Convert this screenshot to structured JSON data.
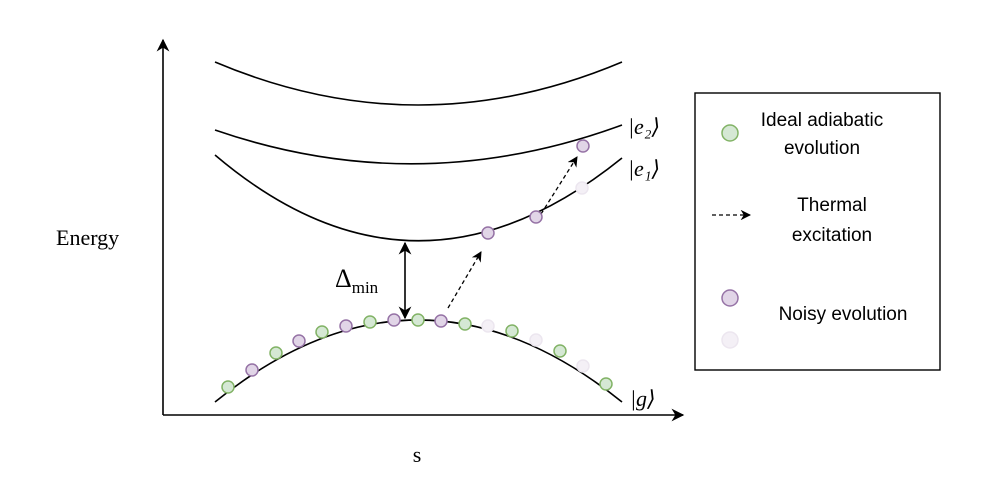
{
  "axes": {
    "y_label": "Energy",
    "x_label": "s"
  },
  "states": {
    "e2": "|e₂⟩",
    "e1": "|e₁⟩",
    "g": "|g⟩"
  },
  "gap": {
    "symbol": "Δ",
    "subscript": "min"
  },
  "legend": {
    "ideal": [
      "Ideal adiabatic",
      "evolution"
    ],
    "thermal": [
      "Thermal",
      "excitation"
    ],
    "noisy": [
      "Noisy evolution"
    ]
  }
}
